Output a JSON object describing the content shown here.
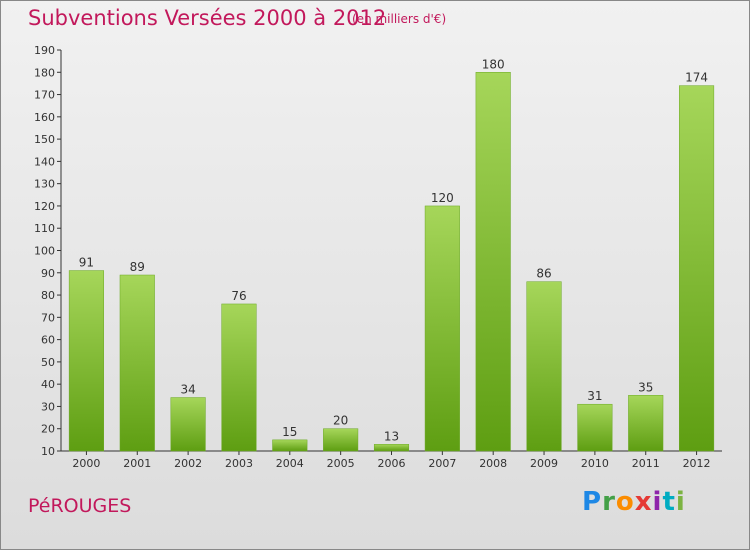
{
  "header": {
    "title": "Subventions Versées 2000 à 2012",
    "subtitle": "(en milliers d'€)"
  },
  "footer": {
    "commune": "PéROUGES",
    "logo_text": "Proxiti"
  },
  "colors": {
    "title": "#c2185b",
    "bar_top": "#a6d65a",
    "bar_bottom": "#5e9e12",
    "axis": "#333333"
  },
  "chart_data": {
    "type": "bar",
    "title": "Subventions Versées 2000 à 2012",
    "subtitle": "(en milliers d'€)",
    "xlabel": "",
    "ylabel": "",
    "categories": [
      "2000",
      "2001",
      "2002",
      "2003",
      "2004",
      "2005",
      "2006",
      "2007",
      "2008",
      "2009",
      "2010",
      "2011",
      "2012"
    ],
    "values": [
      91,
      89,
      34,
      76,
      15,
      20,
      13,
      120,
      180,
      86,
      31,
      35,
      174
    ],
    "ylim": [
      10,
      190
    ],
    "yticks": [
      10,
      20,
      30,
      40,
      50,
      60,
      70,
      80,
      90,
      100,
      110,
      120,
      130,
      140,
      150,
      160,
      170,
      180,
      190
    ],
    "grid": false,
    "legend": "none"
  }
}
